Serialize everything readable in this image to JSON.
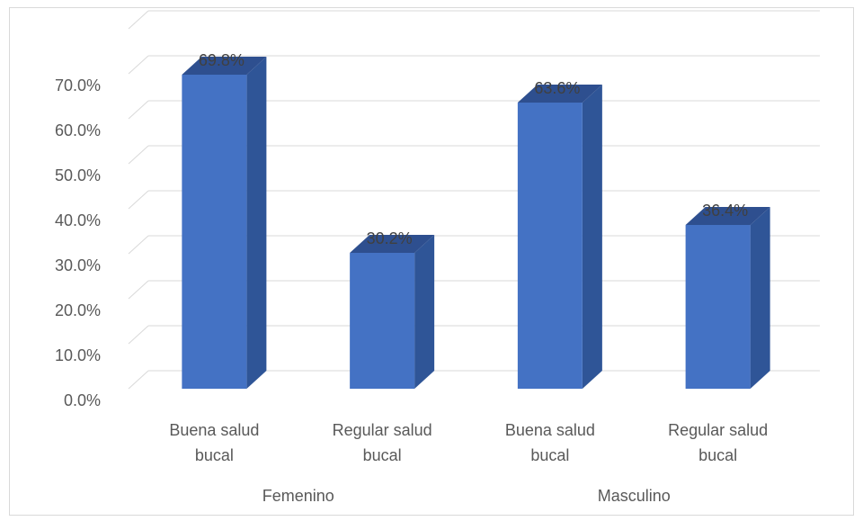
{
  "chart_data": {
    "type": "bar",
    "style": "3d-column",
    "groups": [
      {
        "label": "Femenino",
        "categories": [
          "Buena salud bucal",
          "Regular salud bucal"
        ]
      },
      {
        "label": "Masculino",
        "categories": [
          "Buena salud bucal",
          "Regular salud bucal"
        ]
      }
    ],
    "categories": [
      [
        "Buena salud",
        "bucal"
      ],
      [
        "Regular salud",
        "bucal"
      ],
      [
        "Buena salud",
        "bucal"
      ],
      [
        "Regular salud",
        "bucal"
      ]
    ],
    "values": [
      69.8,
      30.2,
      63.6,
      36.4
    ],
    "data_labels": [
      "69.8%",
      "30.2%",
      "63.6%",
      "36.4%"
    ],
    "y_ticks": [
      "0.0%",
      "10.0%",
      "20.0%",
      "30.0%",
      "40.0%",
      "50.0%",
      "60.0%",
      "70.0%"
    ],
    "ylim": [
      0,
      70
    ],
    "grid": true,
    "colors": {
      "bar_front": "#4472c4",
      "bar_side": "#2f5597",
      "bar_top": "#2e4f8f",
      "grid": "#d9d9d9"
    }
  }
}
